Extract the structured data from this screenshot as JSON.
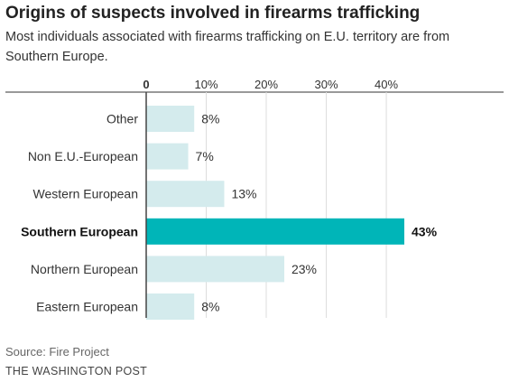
{
  "title": "Origins of suspects involved in firearms trafficking",
  "subtitle": "Most individuals associated with firearms trafficking on E.U. territory are from Southern Europe.",
  "source": "Source: Fire Project",
  "credit": "THE WASHINGTON POST",
  "colors": {
    "bar": "#d4ebed",
    "highlight": "#00b5b8",
    "grid": "#dddddd",
    "axis": "#444444"
  },
  "chart_data": {
    "type": "bar",
    "orientation": "horizontal",
    "categories": [
      "Other",
      "Non E.U.-European",
      "Western European",
      "Southern European",
      "Northern European",
      "Eastern European"
    ],
    "values": [
      8,
      7,
      13,
      43,
      23,
      8
    ],
    "value_labels": [
      "8%",
      "7%",
      "13%",
      "43%",
      "23%",
      "8%"
    ],
    "highlight_index": 3,
    "xlim": [
      0,
      43
    ],
    "ticks": [
      0,
      10,
      20,
      30,
      40
    ],
    "tick_labels": [
      "0",
      "10%",
      "20%",
      "30%",
      "40%"
    ],
    "grid": true
  }
}
